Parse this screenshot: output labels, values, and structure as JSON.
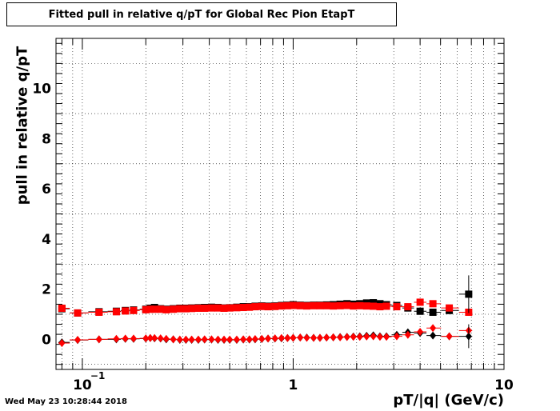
{
  "timestamp": "Wed May 23 10:28:44 2018",
  "chart_data": {
    "type": "scatter",
    "title": "Fitted pull in relative q/pT for Global Rec Pion EtapT",
    "xlabel": "pT/|q| (GeV/c)",
    "ylabel": "pull in relative q/pT",
    "xscale": "log",
    "xlim": [
      0.075,
      10
    ],
    "ylim": [
      -1.2,
      12
    ],
    "grid": true,
    "y_ticks": [
      {
        "value": 0,
        "label": "0"
      },
      {
        "value": 2,
        "label": "2"
      },
      {
        "value": 4,
        "label": "4"
      },
      {
        "value": 6,
        "label": "6"
      },
      {
        "value": 8,
        "label": "8"
      },
      {
        "value": 10,
        "label": "10"
      }
    ],
    "x_ticks": [
      {
        "value": 0.1,
        "label": "10",
        "sup": "−1"
      },
      {
        "value": 1,
        "label": "1",
        "sup": ""
      },
      {
        "value": 10,
        "label": "10",
        "sup": ""
      }
    ],
    "x": [
      0.08,
      0.095,
      0.12,
      0.145,
      0.16,
      0.175,
      0.2,
      0.21,
      0.22,
      0.235,
      0.25,
      0.27,
      0.29,
      0.31,
      0.33,
      0.355,
      0.38,
      0.41,
      0.44,
      0.47,
      0.5,
      0.54,
      0.58,
      0.62,
      0.66,
      0.71,
      0.76,
      0.82,
      0.88,
      0.94,
      1.0,
      1.08,
      1.16,
      1.25,
      1.34,
      1.44,
      1.55,
      1.67,
      1.8,
      1.93,
      2.07,
      2.23,
      2.4,
      2.58,
      2.77,
      3.1,
      3.5,
      4.0,
      4.6,
      5.5,
      6.8
    ],
    "series": [
      {
        "marker": "square",
        "color": "#000000",
        "values": [
          1.22,
          1.05,
          1.1,
          1.12,
          1.15,
          1.17,
          1.2,
          1.24,
          1.27,
          1.22,
          1.2,
          1.22,
          1.24,
          1.24,
          1.25,
          1.26,
          1.27,
          1.28,
          1.27,
          1.25,
          1.26,
          1.28,
          1.3,
          1.3,
          1.32,
          1.33,
          1.32,
          1.33,
          1.35,
          1.36,
          1.38,
          1.36,
          1.35,
          1.36,
          1.36,
          1.37,
          1.38,
          1.4,
          1.42,
          1.4,
          1.42,
          1.45,
          1.46,
          1.42,
          1.38,
          1.35,
          1.25,
          1.12,
          1.08,
          1.15,
          1.8
        ]
      },
      {
        "marker": "diamond",
        "color": "#000000",
        "values": [
          -0.12,
          -0.03,
          0.0,
          0.0,
          0.02,
          0.02,
          0.03,
          0.05,
          0.04,
          0.03,
          0.0,
          0.0,
          -0.02,
          -0.02,
          -0.02,
          -0.02,
          -0.01,
          -0.01,
          -0.02,
          -0.02,
          -0.02,
          -0.02,
          -0.01,
          -0.01,
          0.0,
          0.01,
          0.03,
          0.03,
          0.04,
          0.05,
          0.06,
          0.07,
          0.07,
          0.06,
          0.06,
          0.07,
          0.08,
          0.09,
          0.1,
          0.11,
          0.12,
          0.14,
          0.16,
          0.12,
          0.12,
          0.18,
          0.28,
          0.25,
          0.15,
          0.12,
          0.12
        ]
      },
      {
        "marker": "square",
        "color": "#ff0000",
        "values": [
          1.24,
          1.05,
          1.08,
          1.1,
          1.13,
          1.15,
          1.18,
          1.2,
          1.2,
          1.2,
          1.18,
          1.2,
          1.22,
          1.22,
          1.23,
          1.24,
          1.24,
          1.25,
          1.25,
          1.24,
          1.25,
          1.26,
          1.27,
          1.28,
          1.3,
          1.31,
          1.3,
          1.31,
          1.33,
          1.34,
          1.35,
          1.34,
          1.33,
          1.34,
          1.34,
          1.34,
          1.33,
          1.34,
          1.35,
          1.33,
          1.34,
          1.33,
          1.32,
          1.3,
          1.32,
          1.3,
          1.3,
          1.48,
          1.42,
          1.25,
          1.08
        ]
      },
      {
        "marker": "diamond",
        "color": "#ff0000",
        "values": [
          -0.15,
          -0.02,
          0.0,
          0.02,
          0.03,
          0.03,
          0.04,
          0.05,
          0.05,
          0.04,
          0.02,
          0.0,
          -0.01,
          -0.01,
          -0.01,
          -0.01,
          0.0,
          0.0,
          -0.01,
          -0.01,
          -0.01,
          -0.01,
          0.0,
          0.0,
          0.01,
          0.02,
          0.03,
          0.04,
          0.05,
          0.05,
          0.06,
          0.07,
          0.06,
          0.06,
          0.06,
          0.07,
          0.08,
          0.08,
          0.09,
          0.1,
          0.1,
          0.11,
          0.12,
          0.1,
          0.1,
          0.12,
          0.18,
          0.3,
          0.45,
          0.12,
          0.35
        ]
      }
    ]
  }
}
